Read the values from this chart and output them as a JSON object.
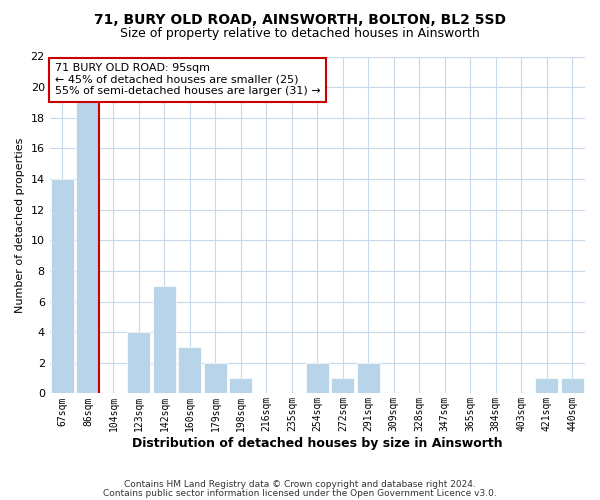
{
  "title": "71, BURY OLD ROAD, AINSWORTH, BOLTON, BL2 5SD",
  "subtitle": "Size of property relative to detached houses in Ainsworth",
  "xlabel": "Distribution of detached houses by size in Ainsworth",
  "ylabel": "Number of detached properties",
  "bar_color": "#b8d4e8",
  "marker_line_color": "#cc0000",
  "categories": [
    "67sqm",
    "86sqm",
    "104sqm",
    "123sqm",
    "142sqm",
    "160sqm",
    "179sqm",
    "198sqm",
    "216sqm",
    "235sqm",
    "254sqm",
    "272sqm",
    "291sqm",
    "309sqm",
    "328sqm",
    "347sqm",
    "365sqm",
    "384sqm",
    "403sqm",
    "421sqm",
    "440sqm"
  ],
  "values": [
    14,
    19,
    0,
    4,
    7,
    3,
    2,
    1,
    0,
    0,
    2,
    1,
    2,
    0,
    0,
    0,
    0,
    0,
    0,
    1,
    1
  ],
  "marker_index": 1,
  "annotation_title": "71 BURY OLD ROAD: 95sqm",
  "annotation_line1": "← 45% of detached houses are smaller (25)",
  "annotation_line2": "55% of semi-detached houses are larger (31) →",
  "ylim": [
    0,
    22
  ],
  "yticks": [
    0,
    2,
    4,
    6,
    8,
    10,
    12,
    14,
    16,
    18,
    20,
    22
  ],
  "footer1": "Contains HM Land Registry data © Crown copyright and database right 2024.",
  "footer2": "Contains public sector information licensed under the Open Government Licence v3.0.",
  "background_color": "#ffffff",
  "grid_color": "#c8d8e8"
}
